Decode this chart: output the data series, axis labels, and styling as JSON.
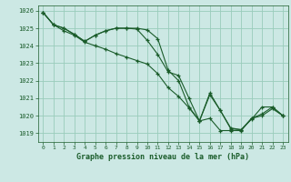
{
  "title": "Graphe pression niveau de la mer (hPa)",
  "background_color": "#cce8e4",
  "grid_color": "#99ccbb",
  "line_color": "#1a5c2a",
  "xlim": [
    -0.5,
    23.5
  ],
  "ylim": [
    1018.5,
    1026.3
  ],
  "yticks": [
    1019,
    1020,
    1021,
    1022,
    1023,
    1024,
    1025,
    1026
  ],
  "xticks": [
    0,
    1,
    2,
    3,
    4,
    5,
    6,
    7,
    8,
    9,
    10,
    11,
    12,
    13,
    14,
    15,
    16,
    17,
    18,
    19,
    20,
    21,
    22,
    23
  ],
  "series": [
    [
      1025.9,
      1025.2,
      1025.0,
      1024.65,
      1024.25,
      1024.6,
      1024.85,
      1025.0,
      1025.0,
      1024.95,
      1024.3,
      1023.5,
      1022.5,
      1022.3,
      1021.0,
      1019.7,
      1021.2,
      1020.3,
      1019.25,
      1019.2,
      1019.8,
      1020.5,
      1020.5,
      1020.0
    ],
    [
      1025.9,
      1025.2,
      1025.0,
      1024.65,
      1024.25,
      1024.6,
      1024.85,
      1025.0,
      1025.0,
      1025.0,
      1024.9,
      1024.4,
      1022.6,
      1022.0,
      1020.5,
      1019.7,
      1021.3,
      1020.3,
      1019.3,
      1019.2,
      1019.85,
      1020.1,
      1020.5,
      1020.0
    ],
    [
      1025.9,
      1025.2,
      1024.85,
      1024.6,
      1024.2,
      1024.0,
      1023.8,
      1023.55,
      1023.35,
      1023.15,
      1022.95,
      1022.4,
      1021.6,
      1021.1,
      1020.45,
      1019.7,
      1019.85,
      1019.15,
      1019.15,
      1019.15,
      1019.85,
      1020.0,
      1020.4,
      1020.0
    ]
  ]
}
